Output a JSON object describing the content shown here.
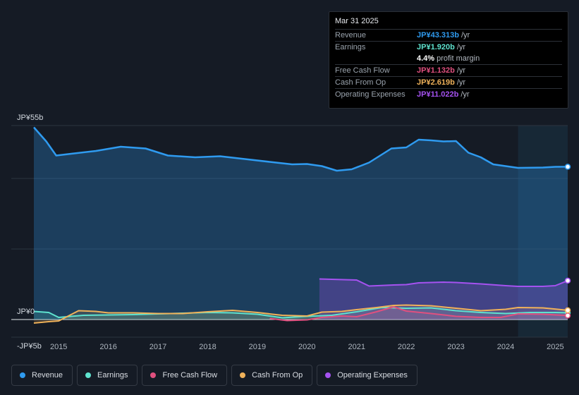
{
  "tooltip": {
    "date": "Mar 31 2025",
    "rows": [
      {
        "label": "Revenue",
        "value": "JP¥43.313b",
        "unit": "/yr",
        "color": "#2f9bf0"
      },
      {
        "label": "Earnings",
        "value": "JP¥1.920b",
        "unit": "/yr",
        "color": "#5fe3cf"
      },
      {
        "label": "",
        "value": "4.4%",
        "unit": "profit margin",
        "color": "#ffffff"
      },
      {
        "label": "Free Cash Flow",
        "value": "JP¥1.132b",
        "unit": "/yr",
        "color": "#e0507f"
      },
      {
        "label": "Cash From Op",
        "value": "JP¥2.619b",
        "unit": "/yr",
        "color": "#f0b25a"
      },
      {
        "label": "Operating Expenses",
        "value": "JP¥11.022b",
        "unit": "/yr",
        "color": "#a552f0"
      }
    ]
  },
  "legend": [
    {
      "label": "Revenue",
      "color": "#2f9bf0"
    },
    {
      "label": "Earnings",
      "color": "#5fe3cf"
    },
    {
      "label": "Free Cash Flow",
      "color": "#e0507f"
    },
    {
      "label": "Cash From Op",
      "color": "#f0b25a"
    },
    {
      "label": "Operating Expenses",
      "color": "#a552f0"
    }
  ],
  "chart_data": {
    "type": "area",
    "title": "",
    "ytick_labels": [
      "JP¥55b",
      "JP¥0",
      "-JP¥5b"
    ],
    "xtick_labels": [
      "2015",
      "2016",
      "2017",
      "2018",
      "2019",
      "2020",
      "2021",
      "2022",
      "2023",
      "2024",
      "2025"
    ],
    "ylim": [
      -5,
      55
    ],
    "xlim": [
      2014.5,
      2025.25
    ],
    "forecast_start": 2024.25,
    "series": [
      {
        "name": "Revenue",
        "color": "#2f9bf0",
        "x": [
          2014.5,
          2014.75,
          2014.95,
          2015.25,
          2015.75,
          2016.25,
          2016.75,
          2017.2,
          2017.75,
          2018.25,
          2018.75,
          2019.25,
          2019.7,
          2020.0,
          2020.3,
          2020.6,
          2020.9,
          2021.25,
          2021.7,
          2022.0,
          2022.25,
          2022.5,
          2022.75,
          2023.0,
          2023.25,
          2023.5,
          2023.75,
          2024.25,
          2024.75,
          2025.0,
          2025.25
        ],
        "values": [
          54.5,
          50.5,
          46.5,
          47.0,
          47.8,
          49.0,
          48.5,
          46.5,
          46.0,
          46.3,
          45.5,
          44.7,
          44.0,
          44.1,
          43.5,
          42.2,
          42.6,
          44.5,
          48.5,
          48.8,
          51.0,
          50.8,
          50.5,
          50.6,
          47.3,
          46.0,
          44.0,
          43.0,
          43.1,
          43.3,
          43.313
        ]
      },
      {
        "name": "Earnings",
        "color": "#5fe3cf",
        "x": [
          2014.5,
          2014.8,
          2015.0,
          2015.5,
          2016.0,
          2016.5,
          2017.0,
          2017.5,
          2018.0,
          2018.5,
          2019.0,
          2019.5,
          2020.0,
          2020.5,
          2021.0,
          2021.5,
          2022.0,
          2022.5,
          2023.0,
          2023.5,
          2024.0,
          2024.5,
          2025.0,
          2025.25
        ],
        "values": [
          2.3,
          2.0,
          0.6,
          1.2,
          1.3,
          1.4,
          1.6,
          1.8,
          2.0,
          1.9,
          1.5,
          0.5,
          0.9,
          1.2,
          2.2,
          3.4,
          3.2,
          3.3,
          2.5,
          2.0,
          1.7,
          2.0,
          2.0,
          1.92
        ]
      },
      {
        "name": "Free Cash Flow",
        "color": "#e0507f",
        "x": [
          2019.25,
          2019.6,
          2020.0,
          2020.3,
          2020.7,
          2021.0,
          2021.4,
          2021.75,
          2022.0,
          2022.5,
          2023.0,
          2023.5,
          2023.9,
          2024.25,
          2024.75,
          2025.25
        ],
        "values": [
          0.3,
          -0.3,
          -0.1,
          0.6,
          1.0,
          0.8,
          2.2,
          3.6,
          2.4,
          1.7,
          0.9,
          0.6,
          0.6,
          1.6,
          1.5,
          1.132
        ]
      },
      {
        "name": "Cash From Op",
        "color": "#f0b25a",
        "x": [
          2014.5,
          2014.8,
          2015.0,
          2015.4,
          2015.75,
          2016.0,
          2016.5,
          2017.0,
          2017.5,
          2018.0,
          2018.5,
          2019.0,
          2019.5,
          2020.0,
          2020.3,
          2020.7,
          2021.0,
          2021.4,
          2021.75,
          2022.0,
          2022.5,
          2023.0,
          2023.5,
          2024.0,
          2024.25,
          2024.75,
          2025.25
        ],
        "values": [
          -1.0,
          -0.6,
          -0.4,
          2.5,
          2.3,
          1.9,
          1.9,
          1.7,
          1.7,
          2.2,
          2.6,
          2.0,
          1.2,
          1.0,
          2.1,
          2.3,
          2.8,
          3.4,
          4.0,
          4.1,
          3.9,
          3.2,
          2.5,
          2.9,
          3.4,
          3.3,
          2.619
        ]
      },
      {
        "name": "Operating Expenses",
        "color": "#a552f0",
        "x": [
          2020.25,
          2020.5,
          2021.0,
          2021.25,
          2021.75,
          2022.0,
          2022.25,
          2022.75,
          2023.0,
          2023.5,
          2024.0,
          2024.25,
          2024.75,
          2025.0,
          2025.25
        ],
        "values": [
          11.5,
          11.4,
          11.2,
          9.5,
          9.8,
          9.9,
          10.4,
          10.6,
          10.5,
          10.1,
          9.6,
          9.4,
          9.4,
          9.6,
          11.022
        ]
      }
    ]
  }
}
